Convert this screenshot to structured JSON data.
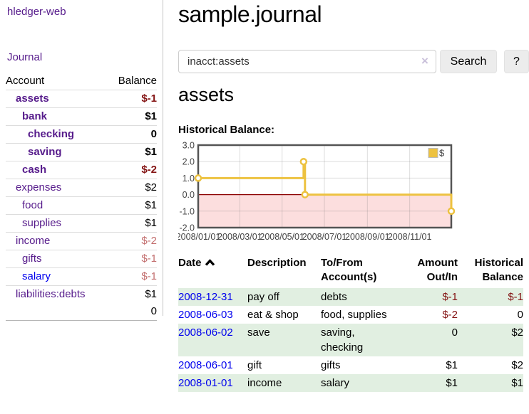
{
  "sidebar": {
    "app_title": "hledger-web",
    "nav_journal": "Journal",
    "accounts_table": {
      "headers": {
        "account": "Account",
        "balance": "Balance"
      },
      "rows": [
        {
          "account": "assets",
          "depth": 1,
          "bold": true,
          "balance": "$-1",
          "balance_style": "neg-strong",
          "link_color": "purple"
        },
        {
          "account": "bank",
          "depth": 2,
          "bold": true,
          "balance": "$1",
          "balance_style": "pos",
          "link_color": "purple"
        },
        {
          "account": "checking",
          "depth": 3,
          "bold": true,
          "balance": "0",
          "balance_style": "pos",
          "link_color": "purple"
        },
        {
          "account": "saving",
          "depth": 3,
          "bold": true,
          "balance": "$1",
          "balance_style": "pos",
          "link_color": "purple"
        },
        {
          "account": "cash",
          "depth": 2,
          "bold": true,
          "balance": "$-2",
          "balance_style": "neg-strong",
          "link_color": "purple"
        },
        {
          "account": "expenses",
          "depth": 1,
          "bold": false,
          "balance": "$2",
          "balance_style": "pos",
          "link_color": "purple"
        },
        {
          "account": "food",
          "depth": 2,
          "bold": false,
          "balance": "$1",
          "balance_style": "pos",
          "link_color": "purple"
        },
        {
          "account": "supplies",
          "depth": 2,
          "bold": false,
          "balance": "$1",
          "balance_style": "pos",
          "link_color": "purple"
        },
        {
          "account": "income",
          "depth": 1,
          "bold": false,
          "balance": "$-2",
          "balance_style": "neg-soft",
          "link_color": "purple"
        },
        {
          "account": "gifts",
          "depth": 2,
          "bold": false,
          "balance": "$-1",
          "balance_style": "neg-soft",
          "link_color": "purple"
        },
        {
          "account": "salary",
          "depth": 2,
          "bold": false,
          "balance": "$-1",
          "balance_style": "neg-soft",
          "link_color": "blue"
        },
        {
          "account": "liabilities:debts",
          "depth": 1,
          "bold": false,
          "balance": "$1",
          "balance_style": "pos",
          "link_color": "purple"
        }
      ],
      "total": "0"
    }
  },
  "header": {
    "title": "sample.journal"
  },
  "search": {
    "value": "inacct:assets",
    "clear_icon": "×",
    "button_label": "Search",
    "help_label": "?"
  },
  "main": {
    "account_heading": "assets",
    "chart_label": "Historical Balance:"
  },
  "chart_data": {
    "type": "line",
    "step": true,
    "title": "Historical Balance",
    "ylim": [
      -2,
      3
    ],
    "x_range_days": 365,
    "x_ticks": [
      "2008/01/01",
      "2008/03/01",
      "2008/05/01",
      "2008/07/01",
      "2008/09/01",
      "2008/11/01"
    ],
    "x_tick_days": [
      0,
      60,
      121,
      182,
      244,
      305
    ],
    "y_ticks": [
      "3.0",
      "2.0",
      "1.0",
      "0.0",
      "-1.0",
      "-2.0"
    ],
    "y_tick_values": [
      3,
      2,
      1,
      0,
      -1,
      -2
    ],
    "grid": true,
    "negative_fill": "#fcdede",
    "zero_line_color": "#8b0000",
    "border_color": "#545454",
    "legend": {
      "label": "$",
      "position": "top-right"
    },
    "series": [
      {
        "name": "$",
        "color": "#edc240",
        "points": [
          {
            "date": "2008-01-01",
            "day": 0,
            "value": 1
          },
          {
            "date": "2008-06-01",
            "day": 152,
            "value": 2
          },
          {
            "date": "2008-06-03",
            "day": 154,
            "value": 0
          },
          {
            "date": "2008-12-31",
            "day": 365,
            "value": -1
          }
        ]
      }
    ]
  },
  "transactions": {
    "headers": {
      "date": "Date",
      "description": "Description",
      "accounts": "To/From Account(s)",
      "amount": "Amount Out/In",
      "balance": "Historical Balance"
    },
    "rows": [
      {
        "date": "2008-12-31",
        "description": "pay off",
        "accounts": "debts",
        "amount": "$-1",
        "amount_neg": true,
        "balance": "$-1",
        "balance_neg": true,
        "striped": true
      },
      {
        "date": "2008-06-03",
        "description": "eat & shop",
        "accounts": "food, supplies",
        "amount": "$-2",
        "amount_neg": true,
        "balance": "0",
        "balance_neg": false,
        "striped": false
      },
      {
        "date": "2008-06-02",
        "description": "save",
        "accounts": "saving,\nchecking",
        "amount": "0",
        "amount_neg": false,
        "balance": "$2",
        "balance_neg": false,
        "striped": true
      },
      {
        "date": "2008-06-01",
        "description": "gift",
        "accounts": "gifts",
        "amount": "$1",
        "amount_neg": false,
        "balance": "$2",
        "balance_neg": false,
        "striped": false
      },
      {
        "date": "2008-01-01",
        "description": "income",
        "accounts": "salary",
        "amount": "$1",
        "amount_neg": false,
        "balance": "$1",
        "balance_neg": false,
        "striped": true
      }
    ]
  }
}
